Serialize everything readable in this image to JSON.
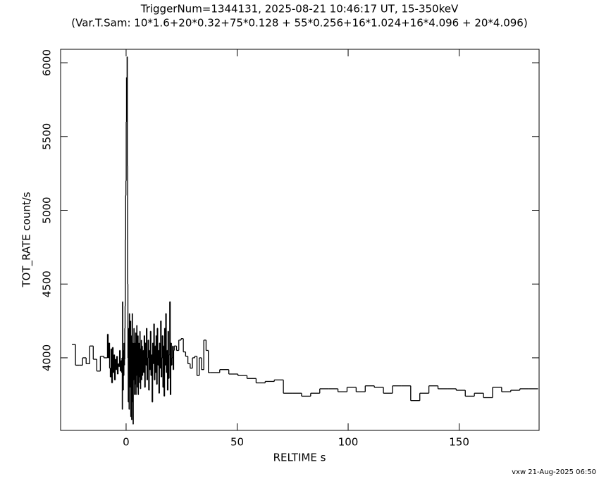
{
  "chart_data": {
    "type": "step",
    "title": "TriggerNum=1344131, 2025-08-21 10:46:17 UT, 15-350keV",
    "subtitle": "(Var.T.Sam: 10*1.6+20*0.32+75*0.128  +  55*0.256+16*1.024+16*4.096  +  20*4.096)",
    "x_label": "RELTIME  s",
    "y_label": "TOT_RATE  count/s",
    "footer": "vxw 21-Aug-2025 06:50",
    "color": "#000000",
    "xlim": [
      -29.5,
      186
    ],
    "ylim": [
      3508,
      6091
    ],
    "xticks": [
      0,
      50,
      100,
      150
    ],
    "yticks": [
      4000,
      4500,
      5000,
      5500,
      6000
    ],
    "x": [
      -24.4,
      -22.8,
      -21.2,
      -19.6,
      -18,
      -16.4,
      -14.8,
      -13.2,
      -11.6,
      -10,
      -8.4,
      -8.08,
      -7.76,
      -7.44,
      -7.12,
      -6.8,
      -6.48,
      -6.16,
      -5.84,
      -5.52,
      -5.2,
      -4.88,
      -4.56,
      -4.24,
      -3.92,
      -3.6,
      -3.28,
      -2.96,
      -2.64,
      -2.32,
      -2,
      -1.872,
      -1.744,
      -1.616,
      -1.488,
      -1.36,
      -1.232,
      -1.104,
      -0.976,
      -0.848,
      -0.72,
      -0.592,
      -0.464,
      -0.336,
      -0.208,
      -0.08,
      0.048,
      0.176,
      0.304,
      0.432,
      0.56,
      0.688,
      0.816,
      0.944,
      1.072,
      1.2,
      1.328,
      1.456,
      1.584,
      1.712,
      1.84,
      1.968,
      2.096,
      2.224,
      2.352,
      2.48,
      2.608,
      2.736,
      2.864,
      2.992,
      3.12,
      3.248,
      3.376,
      3.504,
      3.632,
      3.76,
      3.888,
      4.016,
      4.144,
      4.272,
      4.4,
      4.528,
      4.656,
      4.784,
      4.912,
      5.04,
      5.168,
      5.296,
      5.424,
      5.552,
      5.68,
      5.808,
      5.936,
      6.064,
      6.192,
      6.32,
      6.448,
      6.576,
      6.704,
      6.832,
      6.96,
      7.088,
      7.216,
      7.344,
      7.472,
      7.6,
      7.856,
      8.112,
      8.368,
      8.624,
      8.88,
      9.136,
      9.392,
      9.648,
      9.904,
      10.16,
      10.416,
      10.672,
      10.928,
      11.184,
      11.44,
      11.696,
      11.952,
      12.208,
      12.464,
      12.72,
      12.976,
      13.232,
      13.488,
      13.744,
      14,
      14.256,
      14.512,
      14.768,
      15.024,
      15.28,
      15.536,
      15.792,
      16.048,
      16.304,
      16.56,
      16.816,
      17.072,
      17.328,
      17.584,
      17.84,
      18.096,
      18.352,
      18.608,
      18.864,
      19.12,
      19.376,
      19.632,
      19.888,
      20.144,
      20.4,
      20.656,
      20.912,
      21.168,
      21.424,
      21.68,
      22.704,
      23.728,
      24.752,
      25.776,
      26.8,
      27.824,
      28.848,
      29.872,
      30.896,
      31.92,
      32.944,
      33.968,
      34.992,
      36.016,
      37.04,
      38.064,
      42.16,
      46.256,
      50.352,
      54.448,
      58.544,
      62.64,
      66.736,
      70.832,
      74.928,
      79.024,
      83.12,
      87.216,
      91.312,
      95.408,
      99.504,
      103.6,
      107.696,
      111.792,
      115.888,
      119.984,
      124.08,
      128.176,
      132.272,
      136.368,
      140.464,
      144.56,
      148.656,
      152.752,
      156.848,
      160.944,
      165.04,
      169.136,
      173.232,
      177.328,
      181.424
    ],
    "values": [
      4090,
      3950,
      3950,
      4000,
      3960,
      4080,
      3990,
      3910,
      4010,
      4000,
      4160,
      4000,
      4100,
      3930,
      3870,
      4060,
      3830,
      4070,
      3900,
      4020,
      3850,
      3990,
      3920,
      4010,
      3890,
      3960,
      3940,
      4050,
      3910,
      3980,
      3900,
      4000,
      3650,
      4380,
      3950,
      3780,
      4050,
      3880,
      4100,
      3950,
      3990,
      4200,
      4350,
      4800,
      5100,
      5200,
      5600,
      5900,
      5700,
      6040,
      5300,
      4500,
      4000,
      3700,
      4200,
      3980,
      3650,
      4300,
      3900,
      4100,
      3800,
      4250,
      3600,
      4150,
      3950,
      3580,
      4000,
      4300,
      3700,
      4100,
      3550,
      4050,
      3850,
      4200,
      3920,
      3750,
      4100,
      3820,
      3980,
      4170,
      3750,
      4050,
      3880,
      4220,
      3900,
      3800,
      4000,
      4150,
      3750,
      3950,
      4100,
      3870,
      4030,
      3830,
      4180,
      3920,
      3790,
      4060,
      3900,
      4120,
      3850,
      3970,
      4080,
      3880,
      4010,
      4050,
      3900,
      4150,
      3800,
      4100,
      3950,
      4200,
      3850,
      4000,
      4120,
      3780,
      4050,
      3920,
      4180,
      3880,
      4020,
      3700,
      4100,
      3960,
      4230,
      3850,
      4080,
      3900,
      4150,
      3820,
      4200,
      3950,
      4050,
      3760,
      4100,
      3930,
      4250,
      3870,
      4000,
      4150,
      3800,
      4080,
      3740,
      4200,
      3950,
      4300,
      3900,
      4050,
      3780,
      4180,
      3860,
      4020,
      4380,
      3750,
      4100,
      3950,
      4000,
      4080,
      3920,
      4050,
      4080,
      4050,
      4120,
      4130,
      4040,
      4010,
      3960,
      3930,
      4000,
      4010,
      3880,
      4000,
      3920,
      4120,
      4050,
      3900,
      3900,
      3920,
      3890,
      3880,
      3860,
      3830,
      3840,
      3850,
      3760,
      3760,
      3740,
      3760,
      3790,
      3790,
      3770,
      3800,
      3770,
      3810,
      3800,
      3760,
      3810,
      3810,
      3710,
      3760,
      3810,
      3790,
      3790,
      3780,
      3740,
      3760,
      3730,
      3800,
      3770,
      3780,
      3790,
      3790
    ]
  }
}
